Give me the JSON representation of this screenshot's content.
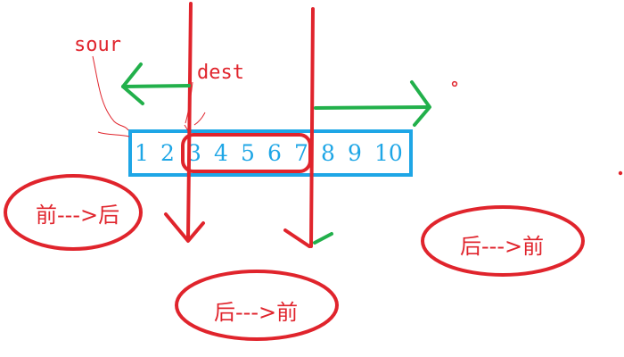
{
  "labels": {
    "sour": "sour",
    "dest": "dest"
  },
  "array": [
    "1",
    "2",
    "3",
    "4",
    "5",
    "6",
    "7",
    "8",
    "9",
    "10"
  ],
  "cases": {
    "left": "前--->后",
    "middle": "后--->前",
    "right": "后--->前"
  },
  "colors": {
    "red": "#e0242c",
    "blue": "#1ea6e6",
    "green": "#22b04b"
  }
}
